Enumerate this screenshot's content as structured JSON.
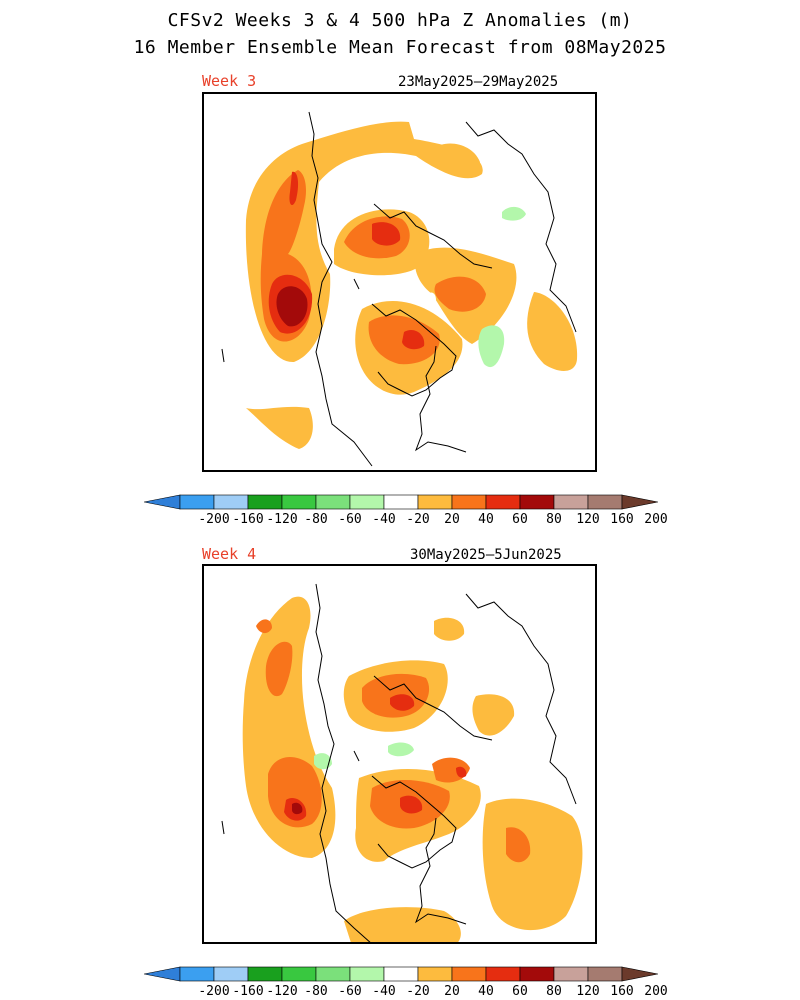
{
  "title_line1": "CFSv2 Weeks 3 & 4 500 hPa Z Anomalies (m)",
  "title_line2": "16 Member Ensemble Mean Forecast from 08May2025",
  "panels": [
    {
      "week_label": "Week 3",
      "date_range": "23May2025–29May2025"
    },
    {
      "week_label": "Week 4",
      "date_range": "30May2025–5Jun2025"
    }
  ],
  "colorbar": {
    "tick_labels": [
      "-200",
      "-160",
      "-120",
      "-80",
      "-60",
      "-40",
      "-20",
      "20",
      "40",
      "60",
      "80",
      "120",
      "160",
      "200"
    ],
    "colors": [
      "#2f7fd8",
      "#3b9ff0",
      "#9fcdf6",
      "#19a01e",
      "#39c840",
      "#7be07b",
      "#b3f7ab",
      "#ffffff",
      "#fdbb3e",
      "#f8741b",
      "#e52d10",
      "#a30a0a",
      "#c8a19a",
      "#a57b70",
      "#6b3a2b"
    ]
  },
  "legend_colors": {
    "pos20": "#fdbb3e",
    "pos40": "#f8741b",
    "pos60": "#e52d10",
    "pos80": "#a30a0a",
    "neg20": "#b3f7ab"
  }
}
